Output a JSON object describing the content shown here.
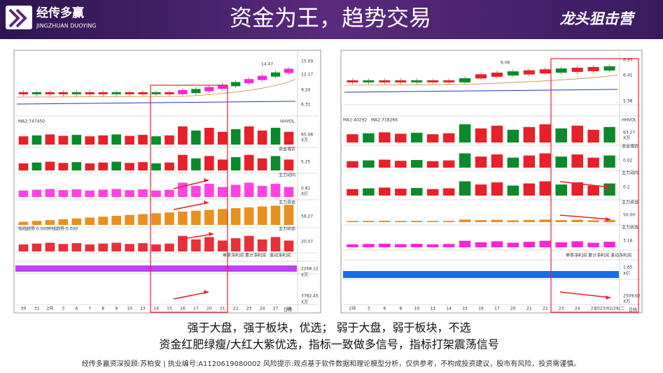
{
  "header": {
    "logo_cn": "经传多赢",
    "logo_en": "JINGZHUAN DUOYING",
    "title": "资金为王，趋势交易",
    "brand": "龙头狙击营"
  },
  "left_chart": {
    "axis_labels": [
      "15.09",
      "12.17",
      "9.24",
      "6.31",
      "65.08",
      "X万",
      "5.25",
      "0.81",
      "X亿",
      "56.27",
      "20.07",
      "2268.12",
      "X万",
      "3782.45",
      "X万"
    ],
    "panel_labels": [
      "MA2:747450",
      "HHVOL",
      "资金博弈",
      "主力动向",
      "主力资金",
      "主力状态",
      "短线趋势:0.000",
      "中线趋势:0.000",
      "单季净利润",
      "累计净利润",
      "滚动净利润",
      "日线"
    ],
    "price_note": "14.47",
    "dates": [
      "30",
      "31",
      "2月",
      "3",
      "6",
      "7",
      "8",
      "9",
      "10",
      "13",
      "14",
      "15",
      "16",
      "17",
      "20",
      "21",
      "22",
      "23",
      "24",
      "27",
      "28"
    ]
  },
  "right_chart": {
    "axis_labels": [
      "6.95",
      "6.41",
      "5.38",
      "63.27",
      "X万",
      "0.02",
      "0.2",
      "50.00",
      "3.18",
      "1.65",
      "X亿",
      "2509.62",
      "X万"
    ],
    "panel_labels": [
      "MA1:40292",
      "MA2:718266",
      "HHVOL",
      "资金博弈",
      "主力动向",
      "主力资金",
      "主力状态",
      "单季净利润",
      "累计净利润",
      "滚动净利润",
      "日线"
    ],
    "price_note": "6.06",
    "dates": [
      "2月",
      "3",
      "6",
      "8",
      "10",
      "13",
      "14",
      "15",
      "16",
      "17",
      "20",
      "21",
      "22",
      "23",
      "24",
      "27",
      "2023/02/28/二"
    ]
  },
  "captions": [
    "强于大盘，强于板块，优选；  弱于大盘，弱于板块，不选",
    "资金红肥绿瘦/大红大紫优选，指标一致做多信号，指标打架震荡信号"
  ],
  "footer": "经传多赢资深投顾:苏柏安  |  执业编号:A1120619080002    风险提示:观点基于软件数据和理论模型分析，仅供参考，不构成投资建议，股市有风险，投资需谨慎。"
}
